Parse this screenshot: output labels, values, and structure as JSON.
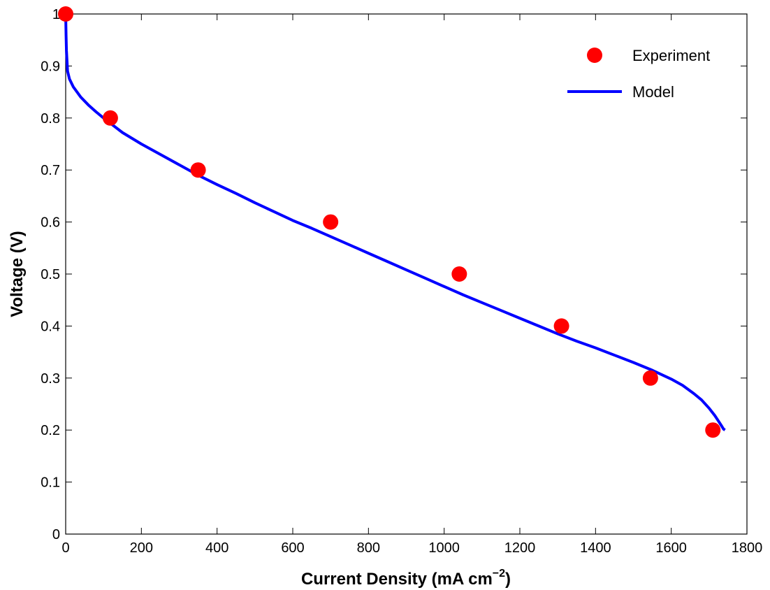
{
  "colors": {
    "experiment": "#ff0000",
    "model": "#0000ff",
    "axis": "#000000",
    "background": "#ffffff"
  },
  "chart_data": {
    "type": "scatter",
    "xlabel": "Current Density (mA cm",
    "xlabel_superscript": "−2",
    "xlabel_close": ")",
    "ylabel": "Voltage (V)",
    "xlim": [
      0,
      1800
    ],
    "ylim": [
      0,
      1
    ],
    "x_ticks": [
      0,
      200,
      400,
      600,
      800,
      1000,
      1200,
      1400,
      1600,
      1800
    ],
    "x_tick_labels": [
      "0",
      "200",
      "400",
      "600",
      "800",
      "1000",
      "1200",
      "1400",
      "1600",
      "1800"
    ],
    "y_ticks": [
      0,
      0.1,
      0.2,
      0.3,
      0.4,
      0.5,
      0.6,
      0.7,
      0.8,
      0.9,
      1
    ],
    "y_tick_labels": [
      "0",
      "0.1",
      "0.2",
      "0.3",
      "0.4",
      "0.5",
      "0.6",
      "0.7",
      "0.8",
      "0.9",
      "1"
    ],
    "grid": false,
    "legend": {
      "placement": "top-right",
      "entries": [
        {
          "label": "Experiment",
          "marker": "circle"
        },
        {
          "label": "Model",
          "marker": "line"
        }
      ]
    },
    "series": [
      {
        "name": "Experiment",
        "kind": "scatter",
        "x": [
          0,
          118,
          350,
          700,
          1040,
          1310,
          1545,
          1710
        ],
        "y": [
          1.0,
          0.8,
          0.7,
          0.6,
          0.5,
          0.4,
          0.3,
          0.2
        ]
      },
      {
        "name": "Model",
        "kind": "line",
        "x": [
          0,
          1,
          2,
          5,
          10,
          20,
          40,
          60,
          80,
          100,
          150,
          200,
          250,
          300,
          350,
          400,
          450,
          500,
          550,
          600,
          650,
          700,
          750,
          800,
          850,
          900,
          950,
          1000,
          1050,
          1100,
          1150,
          1200,
          1250,
          1300,
          1350,
          1400,
          1450,
          1500,
          1550,
          1600,
          1630,
          1660,
          1680,
          1700,
          1715,
          1725,
          1733,
          1738,
          1742
        ],
        "y": [
          1.0,
          0.96,
          0.93,
          0.89,
          0.875,
          0.86,
          0.84,
          0.825,
          0.812,
          0.8,
          0.772,
          0.75,
          0.73,
          0.71,
          0.69,
          0.672,
          0.655,
          0.637,
          0.62,
          0.603,
          0.588,
          0.572,
          0.556,
          0.54,
          0.524,
          0.508,
          0.492,
          0.476,
          0.46,
          0.445,
          0.43,
          0.415,
          0.4,
          0.385,
          0.371,
          0.358,
          0.344,
          0.33,
          0.315,
          0.298,
          0.286,
          0.27,
          0.258,
          0.242,
          0.228,
          0.217,
          0.208,
          0.202,
          0.2
        ]
      }
    ]
  }
}
